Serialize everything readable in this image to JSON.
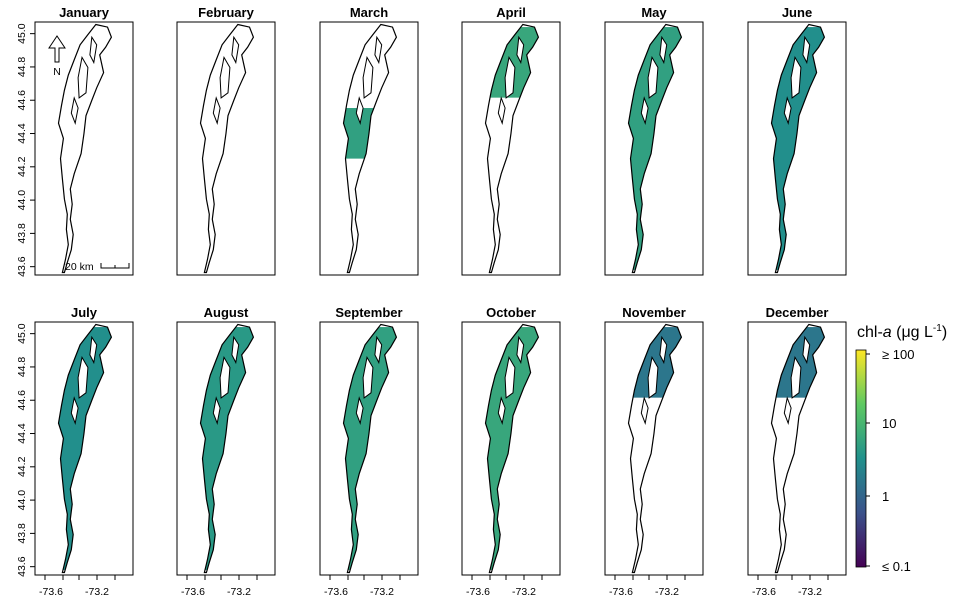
{
  "panels": [
    {
      "month": "January",
      "coverage": 0.0,
      "chl": 0
    },
    {
      "month": "February",
      "coverage": 0.0,
      "chl": 0
    },
    {
      "month": "March",
      "coverage": 0.15,
      "chl": 5
    },
    {
      "month": "April",
      "coverage": 0.45,
      "chl": 6
    },
    {
      "month": "May",
      "coverage": 1.0,
      "chl": 5
    },
    {
      "month": "June",
      "coverage": 1.0,
      "chl": 3
    },
    {
      "month": "July",
      "coverage": 1.0,
      "chl": 3
    },
    {
      "month": "August",
      "coverage": 1.0,
      "chl": 4
    },
    {
      "month": "September",
      "coverage": 1.0,
      "chl": 5
    },
    {
      "month": "October",
      "coverage": 1.0,
      "chl": 6
    },
    {
      "month": "November",
      "coverage": 0.45,
      "chl": 1.5
    },
    {
      "month": "December",
      "coverage": 0.45,
      "chl": 1.5
    }
  ],
  "y_axis": {
    "ticks": [
      "43.6",
      "43.8",
      "44.0",
      "44.2",
      "44.4",
      "44.6",
      "44.8",
      "45.0"
    ],
    "range": [
      43.55,
      45.07
    ]
  },
  "x_axis": {
    "ticks": [
      "-73.6",
      "-73.2"
    ]
  },
  "north_label": "N",
  "scale_bar_label": "20 km",
  "legend": {
    "title_prefix": "chl-",
    "title_italic": "a",
    "title_suffix": " (μg L",
    "title_sup": "-1",
    "title_close": ")",
    "labels": [
      "≥ 100",
      "10",
      "1",
      "≤ 0.1"
    ],
    "colormap": "viridis",
    "colors": [
      "#fde725",
      "#5ec962",
      "#21918c",
      "#3b528b",
      "#440154"
    ]
  }
}
